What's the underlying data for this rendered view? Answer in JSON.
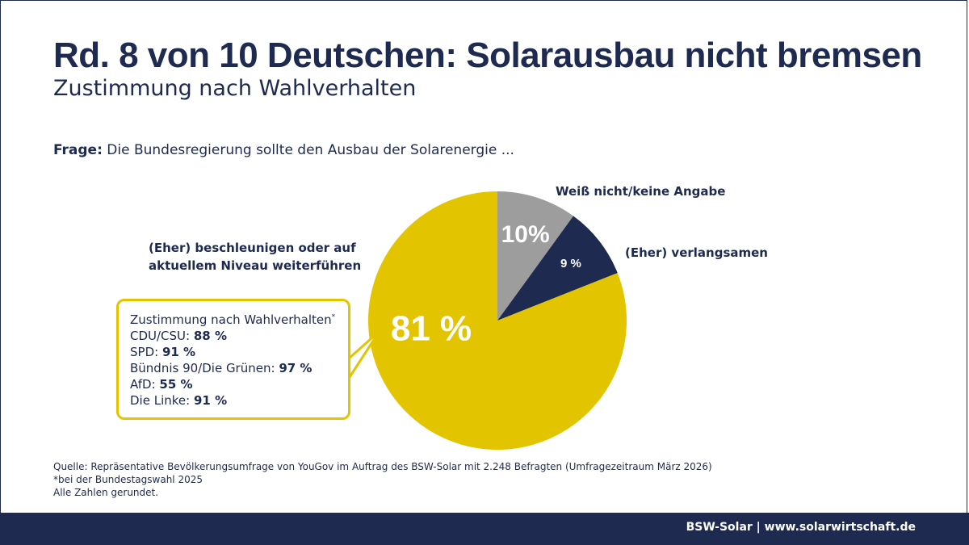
{
  "title": "Rd. 8 von 10 Deutschen: Solarausbau nicht bremsen",
  "subtitle": "Zustimmung nach Wahlverhalten",
  "question": {
    "prefix": "Frage:",
    "text": "Die Bundesregierung sollte den Ausbau der Solarenergie ..."
  },
  "chart_data": {
    "type": "pie",
    "slices": [
      {
        "label_line1": "(Eher) beschleunigen oder auf",
        "label_line2": "aktuellem Niveau weiterführen",
        "value": 81,
        "value_label": "81 %",
        "color": "#e2c400"
      },
      {
        "label_line1": "Weiß nicht/keine Angabe",
        "label_line2": "",
        "value": 10,
        "value_label": "10%",
        "color": "#9d9d9d"
      },
      {
        "label_line1": "(Eher) verlangsamen",
        "label_line2": "",
        "value": 9,
        "value_label": "9 %",
        "color": "#1e2a4f"
      }
    ]
  },
  "callout": {
    "heading": "Zustimmung nach Wahlverhalten",
    "heading_mark": "*",
    "rows": [
      {
        "party": "CDU/CSU:",
        "value": "88 %"
      },
      {
        "party": "SPD:",
        "value": "91 %"
      },
      {
        "party": "Bündnis 90/Die Grünen:",
        "value": "97 %"
      },
      {
        "party": "AfD:",
        "value": "55 %"
      },
      {
        "party": "Die Linke:",
        "value": "91 %"
      }
    ]
  },
  "source": {
    "line1": "Quelle: Repräsentative Bevölkerungsumfrage von YouGov im Auftrag des BSW-Solar mit 2.248 Befragten (Umfragezeitraum März 2026)",
    "line2": "*bei der Bundestagswahl 2025",
    "line3": "Alle Zahlen gerundet."
  },
  "footer": {
    "text": "BSW-Solar | www.solarwirtschaft.de"
  }
}
